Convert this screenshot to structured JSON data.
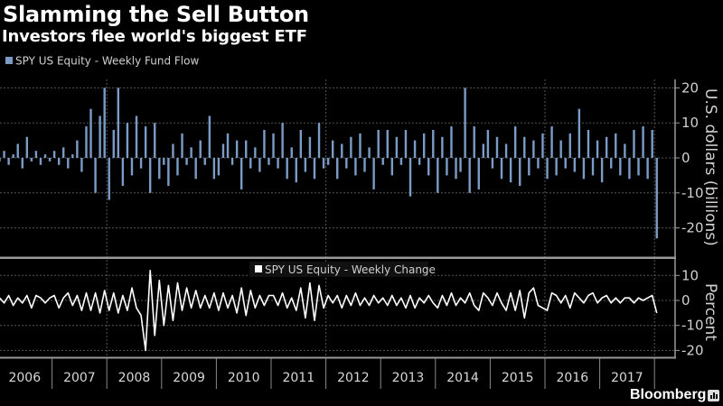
{
  "header": {
    "title": "Slamming the Sell Button",
    "subtitle": "Investors flee world's biggest ETF"
  },
  "branding": {
    "name": "Bloomberg",
    "icon": "bloomberg-terminal-icon"
  },
  "colors": {
    "background": "#000000",
    "flow_bars": "#7b9cc6",
    "change_line": "#ffffff",
    "grid": "#5a5a5a",
    "axis": "#9a9a9a"
  },
  "chart_data": [
    {
      "type": "bar",
      "legend": "SPY US Equity - Weekly Fund Flow",
      "legend_position": "top-left",
      "ylabel": "U.S. dollars (billions)",
      "ylim": [
        -27,
        22
      ],
      "yticks": [
        20,
        10,
        0,
        -10,
        -20
      ],
      "ytick_labels": [
        "20",
        "10",
        "0",
        "-10",
        "-20"
      ],
      "grid": true,
      "x_start": "2006-01",
      "x_step": "month",
      "values": [
        -1,
        2,
        -2,
        1,
        4,
        -3,
        6,
        -1,
        2,
        -2,
        1,
        -1,
        2,
        -2,
        3,
        -3,
        1,
        5,
        -4,
        9,
        14,
        -10,
        12,
        20,
        -12,
        8,
        20,
        -8,
        10,
        -5,
        12,
        -3,
        9,
        -10,
        10,
        -6,
        -2,
        -8,
        4,
        -5,
        7,
        -2,
        3,
        -6,
        5,
        -2,
        12,
        -6,
        -5,
        4,
        7,
        -2,
        5,
        -9,
        5,
        -3,
        3,
        -4,
        8,
        -2,
        7,
        -3,
        10,
        -6,
        3,
        -7,
        8,
        -4,
        6,
        -6,
        10,
        -3,
        -2,
        5,
        -6,
        4,
        -3,
        6,
        -5,
        7,
        -4,
        3,
        -9,
        8,
        -2,
        8,
        -5,
        6,
        -2,
        8,
        -11,
        5,
        -2,
        7,
        -5,
        8,
        -10,
        6,
        -5,
        9,
        -6,
        -4,
        20,
        -10,
        9,
        -9,
        4,
        8,
        -3,
        6,
        -6,
        4,
        -7,
        9,
        -8,
        6,
        -5,
        5,
        -3,
        7,
        -6,
        9,
        -5,
        5,
        -3,
        7,
        -4,
        14,
        -6,
        8,
        -5,
        5,
        -7,
        6,
        -3,
        7,
        -5,
        4,
        -6,
        8,
        -5,
        9,
        -6,
        8,
        -23
      ]
    },
    {
      "type": "line",
      "legend": "SPY US Equity - Weekly Change",
      "legend_position": "top-center",
      "ylabel": "Percent",
      "ylim": [
        -23,
        16
      ],
      "yticks": [
        10,
        0,
        -10,
        -20
      ],
      "ytick_labels": [
        "10",
        "0",
        "-10",
        "-20"
      ],
      "grid": true,
      "x_start": "2006-01",
      "x_step": "month",
      "values": [
        1,
        -1,
        2,
        -2,
        1,
        -1,
        2,
        -3,
        2,
        1,
        -1,
        1,
        2,
        -3,
        1,
        3,
        -2,
        2,
        -4,
        3,
        -4,
        3,
        -5,
        4,
        -4,
        3,
        -5,
        2,
        -4,
        5,
        -3,
        -6,
        -20,
        12,
        -14,
        8,
        -10,
        6,
        -8,
        7,
        -4,
        5,
        -3,
        4,
        -3,
        2,
        -3,
        3,
        -4,
        3,
        -3,
        2,
        -5,
        5,
        -6,
        4,
        -3,
        2,
        -2,
        2,
        2,
        -2,
        3,
        -3,
        1,
        -4,
        5,
        -7,
        7,
        -8,
        6,
        -3,
        2,
        -1,
        2,
        -3,
        2,
        -2,
        3,
        -2,
        1,
        -2,
        2,
        -1,
        1,
        -2,
        2,
        -2,
        1,
        -3,
        2,
        -3,
        1,
        -1,
        2,
        -1,
        -3,
        2,
        -2,
        3,
        -2,
        1,
        -1,
        3,
        -2,
        -4,
        3,
        1,
        -2,
        3,
        -1,
        -4,
        3,
        -4,
        4,
        -7,
        3,
        5,
        -2,
        -3,
        -4,
        3,
        2,
        -1,
        2,
        -3,
        3,
        1,
        -1,
        2,
        3,
        -1,
        1,
        2,
        -1,
        1,
        -1,
        1,
        1,
        -1,
        1,
        0,
        1,
        2,
        -5
      ]
    }
  ],
  "x_axis": {
    "labels": [
      "2006",
      "2007",
      "2008",
      "2009",
      "2010",
      "2011",
      "2012",
      "2013",
      "2014",
      "2015",
      "2016",
      "2017"
    ]
  }
}
